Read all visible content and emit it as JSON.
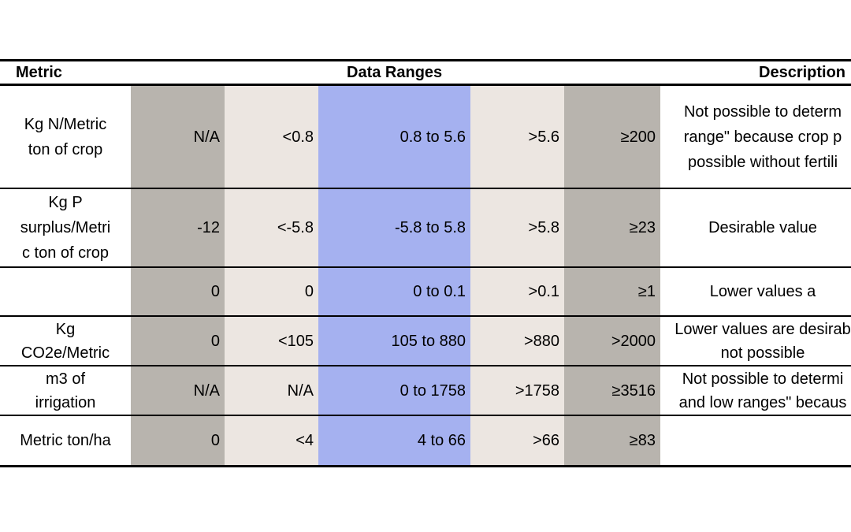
{
  "header": {
    "metric": "Metric",
    "data_ranges": "Data Ranges",
    "description": "Description"
  },
  "rows": [
    {
      "metric_lines": [
        "Kg N/Metric",
        "ton of crop"
      ],
      "values": [
        "N/A",
        "<0.8",
        "0.8 to 5.6",
        ">5.6",
        "≥200"
      ],
      "desc_lines": [
        "Not possible to determ",
        "range\" because crop p",
        "possible without fertili"
      ]
    },
    {
      "metric_lines": [
        "Kg P",
        "surplus/Metri",
        "c ton of crop"
      ],
      "values": [
        "-12",
        "<-5.8",
        "-5.8 to 5.8",
        ">5.8",
        "≥23"
      ],
      "desc_lines": [
        "Desirable value"
      ]
    },
    {
      "metric_lines": [],
      "values": [
        "0",
        "0",
        "0 to 0.1",
        ">0.1",
        "≥1"
      ],
      "desc_lines": [
        "Lower values a"
      ]
    },
    {
      "metric_lines": [
        "Kg",
        "CO2e/Metric"
      ],
      "values": [
        "0",
        "<105",
        "105 to 880",
        ">880",
        ">2000"
      ],
      "desc_lines": [
        "Lower values are desirab",
        "not possible"
      ]
    },
    {
      "metric_lines": [
        "m3 of",
        "irrigation"
      ],
      "values": [
        "N/A",
        "N/A",
        "0 to 1758",
        ">1758",
        "≥3516"
      ],
      "desc_lines": [
        "Not possible to determi",
        "and low ranges\" becaus"
      ]
    },
    {
      "metric_lines": [
        "Metric ton/ha"
      ],
      "values": [
        "0",
        "<4",
        "4  to 66",
        ">66",
        "≥83"
      ],
      "desc_lines": []
    }
  ],
  "colors": {
    "dark_band": "#b8b4ae",
    "light_band": "#ece6e1",
    "target_band": "#a5b1f0"
  }
}
